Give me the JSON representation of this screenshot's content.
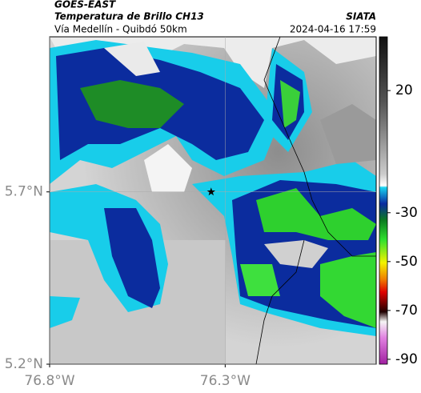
{
  "chart_data": {
    "type": "map",
    "title": "GOES-EAST",
    "subtitle": "Temperatura de Brillo CH13",
    "source": "SIATA",
    "region": "Vía Medellín - Quibdó 50km",
    "datetime": "2024-04-16 17:59",
    "xlim": [
      -76.8,
      -75.87
    ],
    "ylim": [
      5.2,
      6.15
    ],
    "xticks": [
      {
        "value": -76.8,
        "label": "76.8°W"
      },
      {
        "value": -76.3,
        "label": "76.3°W"
      }
    ],
    "yticks": [
      {
        "value": 5.2,
        "label": "5.2°N"
      },
      {
        "value": 5.7,
        "label": "5.7°N"
      }
    ],
    "grid": true,
    "marker": {
      "lon": -76.34,
      "lat": 5.7
    },
    "colorbar": {
      "clim": [
        -92,
        42
      ],
      "ticks": [
        20,
        -30,
        -50,
        -70,
        -90
      ]
    }
  }
}
